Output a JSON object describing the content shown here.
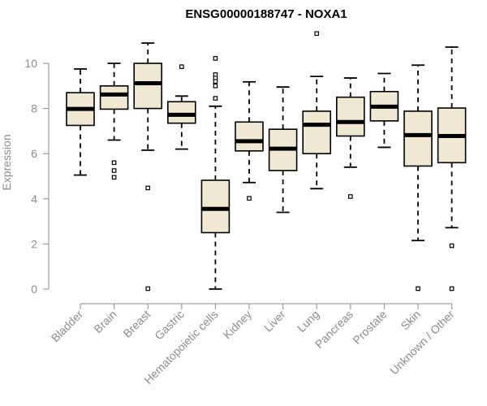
{
  "chart_data": {
    "type": "boxplot",
    "title": "ENSG00000188747 - NOXA1",
    "xlabel": "",
    "ylabel": "Expression",
    "ylim": [
      0,
      11.5
    ],
    "yticks": [
      "0",
      "2",
      "4",
      "6",
      "8",
      "10"
    ],
    "colors": {
      "box_fill": "#efe8d2",
      "median": "#000000",
      "axis": "#8c8c8c"
    },
    "categories": [
      "Bladder",
      "Brain",
      "Breast",
      "Gastric",
      "Hematopoietic cells",
      "Kidney",
      "Liver",
      "Lung",
      "Pancreas",
      "Prostate",
      "Skin",
      "Unknown / Other"
    ],
    "boxes": [
      {
        "category": "Bladder",
        "whisker_low": 5.05,
        "q1": 7.25,
        "median": 7.98,
        "q3": 8.7,
        "whisker_high": 9.75,
        "outliers": []
      },
      {
        "category": "Brain",
        "whisker_low": 6.6,
        "q1": 7.97,
        "median": 8.62,
        "q3": 9.0,
        "whisker_high": 10.0,
        "outliers": [
          5.6,
          5.25,
          4.95
        ]
      },
      {
        "category": "Breast",
        "whisker_low": 6.15,
        "q1": 8.0,
        "median": 9.12,
        "q3": 10.0,
        "whisker_high": 10.9,
        "outliers": [
          4.48,
          0.02
        ]
      },
      {
        "category": "Gastric",
        "whisker_low": 6.2,
        "q1": 7.35,
        "median": 7.72,
        "q3": 8.3,
        "whisker_high": 8.55,
        "outliers": [
          9.85
        ]
      },
      {
        "category": "Hematopoietic cells",
        "whisker_low": 0.0,
        "q1": 2.5,
        "median": 3.55,
        "q3": 4.82,
        "whisker_high": 8.1,
        "outliers": [
          10.22,
          9.5,
          9.35,
          9.2,
          9.0,
          8.45
        ]
      },
      {
        "category": "Kidney",
        "whisker_low": 4.72,
        "q1": 6.12,
        "median": 6.55,
        "q3": 7.4,
        "whisker_high": 9.18,
        "outliers": [
          4.02
        ]
      },
      {
        "category": "Liver",
        "whisker_low": 3.4,
        "q1": 5.25,
        "median": 6.22,
        "q3": 7.08,
        "whisker_high": 8.95,
        "outliers": []
      },
      {
        "category": "Lung",
        "whisker_low": 4.45,
        "q1": 6.0,
        "median": 7.28,
        "q3": 7.88,
        "whisker_high": 9.42,
        "outliers": [
          11.32
        ]
      },
      {
        "category": "Pancreas",
        "whisker_low": 5.4,
        "q1": 6.78,
        "median": 7.4,
        "q3": 8.5,
        "whisker_high": 9.35,
        "outliers": [
          4.1
        ]
      },
      {
        "category": "Prostate",
        "whisker_low": 6.28,
        "q1": 7.45,
        "median": 8.08,
        "q3": 8.75,
        "whisker_high": 9.55,
        "outliers": []
      },
      {
        "category": "Skin",
        "whisker_low": 2.15,
        "q1": 5.45,
        "median": 6.82,
        "q3": 7.88,
        "whisker_high": 9.92,
        "outliers": [
          0.02
        ]
      },
      {
        "category": "Unknown / Other",
        "whisker_low": 2.72,
        "q1": 5.6,
        "median": 6.78,
        "q3": 8.02,
        "whisker_high": 10.72,
        "outliers": [
          1.92,
          0.02
        ]
      }
    ]
  }
}
